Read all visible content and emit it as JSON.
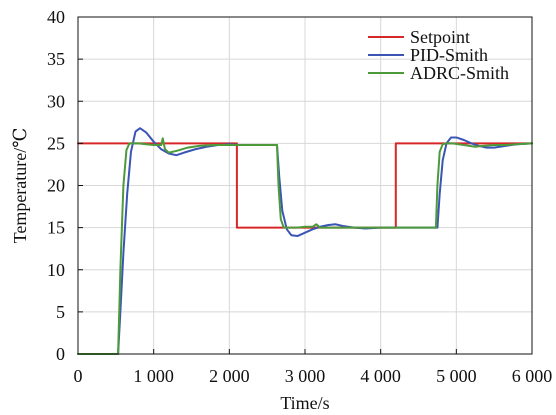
{
  "chart_data": {
    "type": "line",
    "title": "",
    "xlabel": "Time/s",
    "ylabel": "Temperature/℃",
    "xlim": [
      0,
      6000
    ],
    "ylim": [
      0,
      40
    ],
    "xticks": [
      0,
      1000,
      2000,
      3000,
      4000,
      5000,
      6000
    ],
    "xtick_labels": [
      "0",
      "1 000",
      "2 000",
      "3 000",
      "4 000",
      "5 000",
      "6 000"
    ],
    "yticks": [
      0,
      5,
      10,
      15,
      20,
      25,
      30,
      35,
      40
    ],
    "ytick_labels": [
      "0",
      "5",
      "10",
      "15",
      "20",
      "25",
      "30",
      "35",
      "40"
    ],
    "grid": true,
    "legend_position": "top-right",
    "series": [
      {
        "name": "Setpoint",
        "color": "#d62728",
        "x": [
          0,
          2100,
          2100,
          4200,
          4200,
          6000
        ],
        "y": [
          25,
          25,
          15,
          15,
          25,
          25
        ]
      },
      {
        "name": "PID-Smith",
        "color": "#3b55b5",
        "x": [
          0,
          530,
          560,
          600,
          650,
          700,
          760,
          820,
          900,
          1000,
          1100,
          1200,
          1300,
          1400,
          1550,
          1700,
          1850,
          2000,
          2150,
          2300,
          2450,
          2630,
          2660,
          2700,
          2760,
          2820,
          2900,
          3000,
          3100,
          3200,
          3300,
          3400,
          3500,
          3650,
          3800,
          4000,
          4200,
          4500,
          4750,
          4780,
          4820,
          4870,
          4930,
          5000,
          5100,
          5200,
          5300,
          5400,
          5500,
          5650,
          5800,
          6000
        ],
        "y": [
          0,
          0,
          5,
          12,
          19,
          24,
          26.4,
          26.8,
          26.3,
          25.2,
          24.3,
          23.8,
          23.6,
          23.9,
          24.3,
          24.6,
          24.8,
          24.9,
          24.8,
          24.8,
          24.8,
          24.8,
          21.0,
          17.0,
          14.8,
          14.1,
          14.0,
          14.4,
          14.8,
          15.1,
          15.3,
          15.4,
          15.2,
          15.0,
          14.9,
          15.0,
          15.0,
          15.0,
          15.0,
          19.0,
          23.0,
          25.0,
          25.7,
          25.7,
          25.4,
          25.0,
          24.7,
          24.5,
          24.5,
          24.7,
          24.9,
          25.0
        ]
      },
      {
        "name": "ADRC-Smith",
        "color": "#4c9a3a",
        "x": [
          0,
          530,
          560,
          600,
          640,
          680,
          720,
          800,
          900,
          1000,
          1100,
          1120,
          1150,
          1200,
          1300,
          1450,
          1600,
          1800,
          2000,
          2200,
          2400,
          2630,
          2650,
          2680,
          2720,
          2800,
          2900,
          3000,
          3100,
          3150,
          3200,
          3300,
          3400,
          3600,
          3800,
          4000,
          4200,
          4500,
          4730,
          4750,
          4780,
          4820,
          4870,
          4950,
          5100,
          5250,
          5350,
          5500,
          5650,
          5800,
          6000
        ],
        "y": [
          0,
          0,
          10,
          20,
          24.2,
          25.0,
          25.0,
          25.0,
          24.9,
          24.8,
          24.8,
          25.6,
          24.3,
          23.9,
          24.1,
          24.5,
          24.7,
          24.8,
          24.8,
          24.8,
          24.8,
          24.8,
          20.0,
          16.0,
          15.0,
          15.0,
          15.0,
          15.1,
          15.1,
          15.4,
          15.0,
          15.0,
          15.0,
          15.0,
          15.0,
          15.0,
          15.0,
          15.0,
          15.0,
          20.0,
          24.0,
          24.9,
          25.0,
          25.0,
          24.8,
          24.6,
          24.7,
          24.8,
          24.8,
          24.9,
          25.0
        ]
      }
    ]
  }
}
